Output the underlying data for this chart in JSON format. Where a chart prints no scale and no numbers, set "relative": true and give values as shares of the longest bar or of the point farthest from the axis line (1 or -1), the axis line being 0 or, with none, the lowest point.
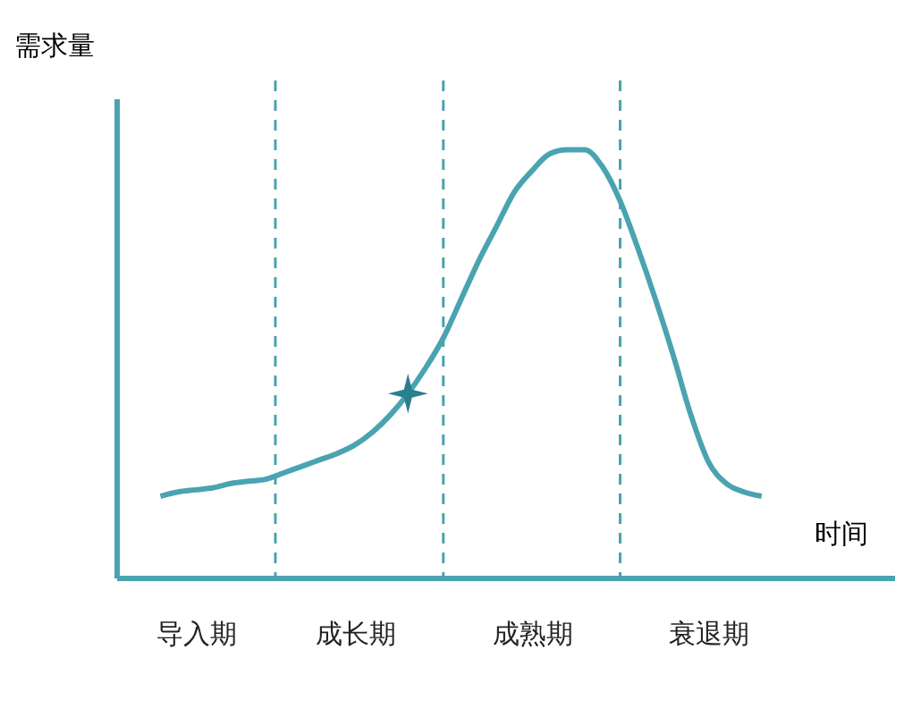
{
  "chart_data": {
    "type": "line",
    "relative": true,
    "xlabel": "时间",
    "ylabel": "需求量",
    "categories": [
      null,
      null,
      null,
      "导入期",
      null,
      null,
      null,
      null,
      null,
      null,
      null,
      null,
      "成长期",
      null,
      null,
      null,
      null,
      null,
      null,
      null,
      null,
      null,
      "成熟期",
      null,
      null,
      null,
      null,
      null,
      null,
      null,
      null,
      null,
      "衰退期",
      null,
      null,
      null
    ],
    "series": [
      {
        "color": "#4aa3b0",
        "values": [
          null,
          0.19,
          0.2,
          0.205,
          0.21,
          0.22,
          0.225,
          0.23,
          0.245,
          0.26,
          0.275,
          0.29,
          0.31,
          0.34,
          0.38,
          0.43,
          0.49,
          0.56,
          0.65,
          0.74,
          0.82,
          0.9,
          0.95,
          0.99,
          1.0,
          1.0,
          0.96,
          0.88,
          0.77,
          0.65,
          0.52,
          0.38,
          0.27,
          0.22,
          0.2,
          0.19
        ]
      },
      {
        "type": "scatter",
        "color": "#2a7f8c",
        "marker": "star",
        "values": [
          null,
          null,
          null,
          null,
          null,
          null,
          null,
          null,
          null,
          null,
          null,
          null,
          null,
          null,
          null,
          0.43,
          null,
          null,
          null,
          null,
          null,
          null,
          null,
          null,
          null,
          null,
          null,
          null,
          null,
          null,
          null,
          null,
          null,
          null,
          null,
          null
        ]
      }
    ]
  }
}
